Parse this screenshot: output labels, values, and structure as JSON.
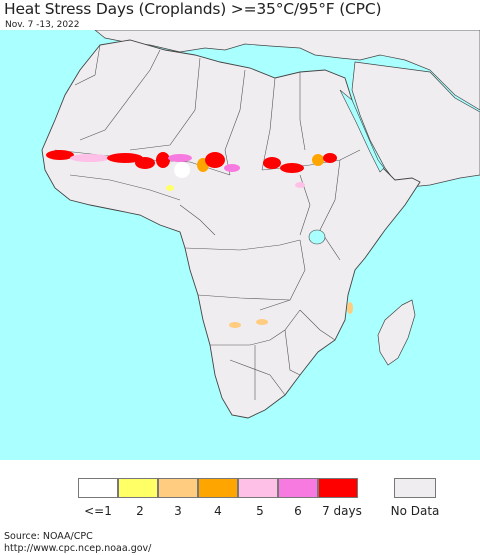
{
  "title": "Heat Stress Days (Croplands) >=35°C/95°F (CPC)",
  "subtitle": "Nov. 7 -13, 2022",
  "colors": {
    "ocean": "#aaffff",
    "land": "#efedf0",
    "border": "#444444",
    "no_data": "#efedf0"
  },
  "legend": {
    "items": [
      {
        "label": "<=1",
        "color": "#ffffff"
      },
      {
        "label": "2",
        "color": "#ffff66"
      },
      {
        "label": "3",
        "color": "#ffcc80"
      },
      {
        "label": "4",
        "color": "#ffa500"
      },
      {
        "label": "5",
        "color": "#ffc0e8"
      },
      {
        "label": "6",
        "color": "#f77ae0"
      },
      {
        "label": "7 days",
        "color": "#ff0000"
      }
    ],
    "no_data_label": "No Data"
  },
  "source": "Source: NOAA/CPC",
  "url": "http://www.cpc.ncep.noaa.gov/"
}
